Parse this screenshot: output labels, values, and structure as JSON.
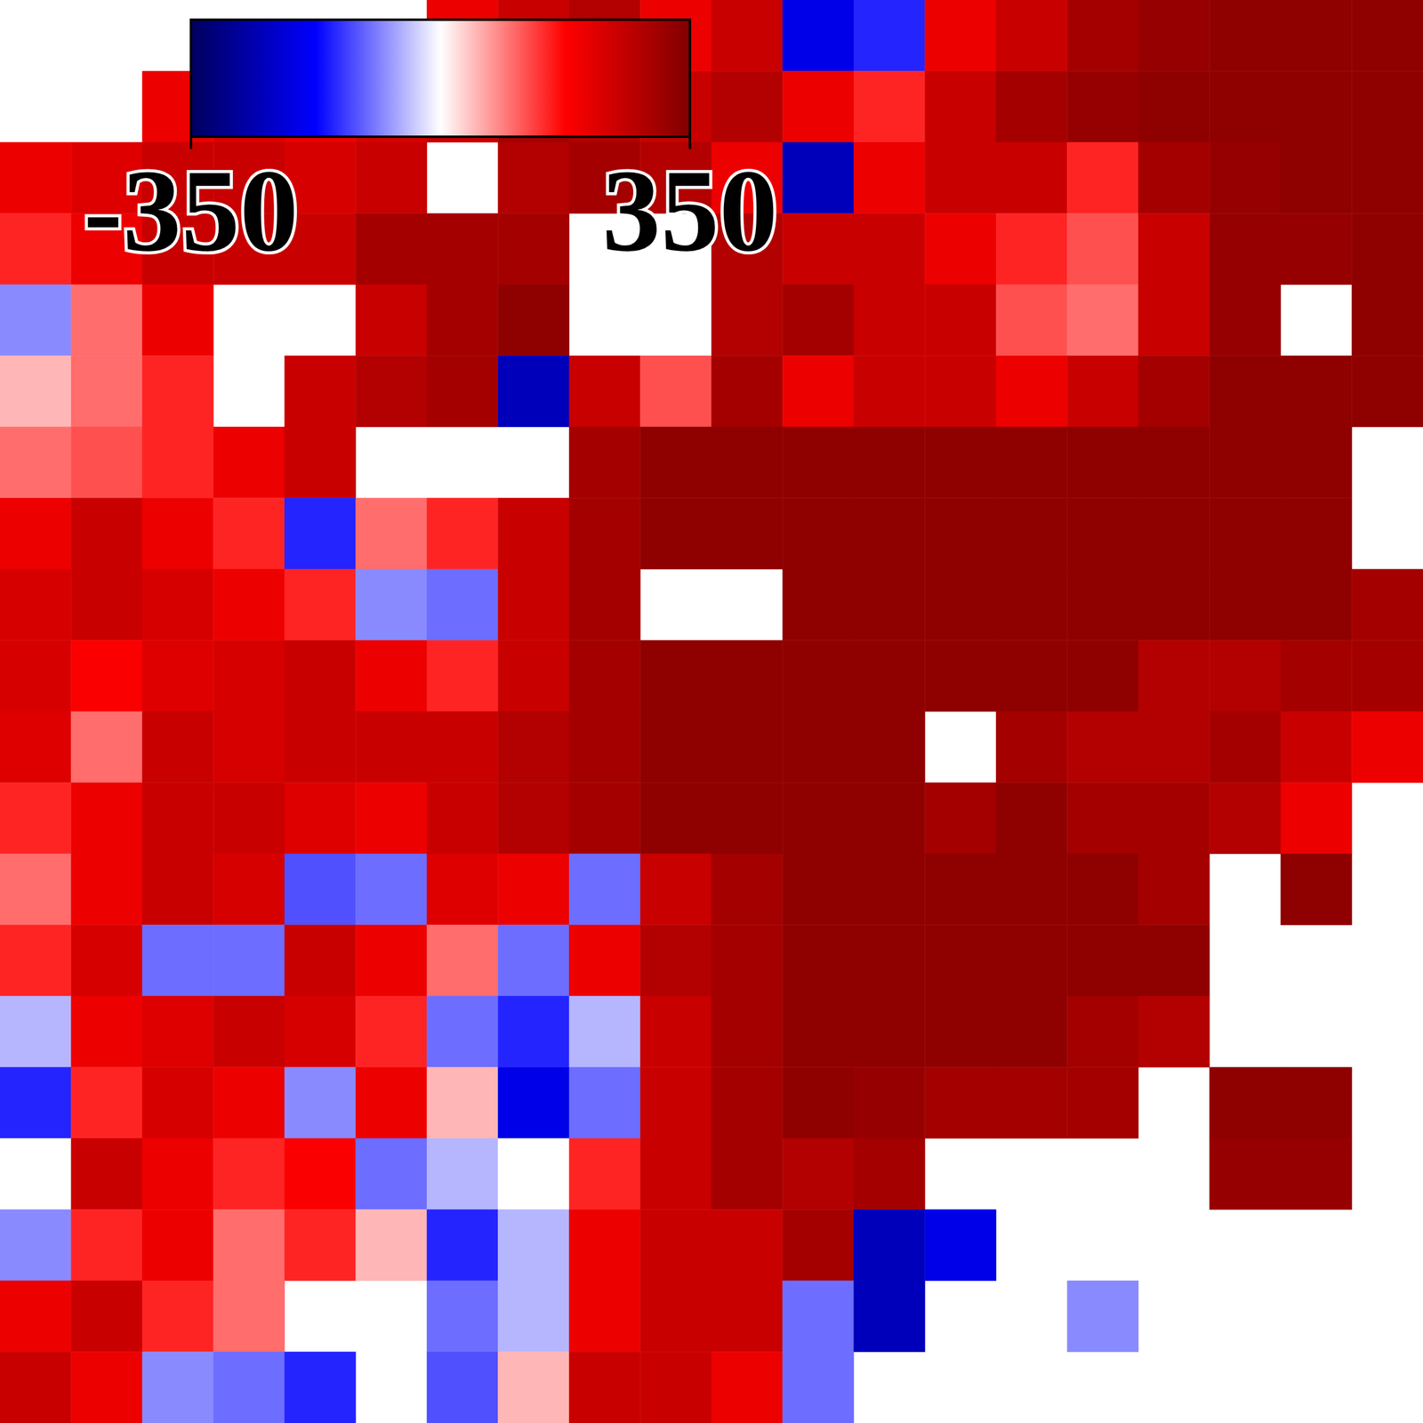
{
  "chart_data": {
    "type": "heatmap",
    "tick_labels": false,
    "colorbar": {
      "range": [
        -350,
        350
      ],
      "ticks": [
        -350,
        350
      ]
    },
    "cells": [
      [
        null,
        null,
        null,
        null,
        null,
        null,
        200,
        250,
        280,
        200,
        250,
        -200,
        -150,
        200,
        250,
        300,
        320,
        330,
        330,
        330
      ],
      [
        null,
        null,
        200,
        220,
        200,
        230,
        250,
        300,
        280,
        250,
        280,
        200,
        150,
        250,
        300,
        320,
        330,
        330,
        330,
        330
      ],
      [
        200,
        220,
        250,
        250,
        230,
        250,
        null,
        280,
        300,
        280,
        200,
        -250,
        200,
        250,
        250,
        150,
        300,
        320,
        330,
        330
      ],
      [
        150,
        200,
        250,
        250,
        250,
        300,
        300,
        300,
        null,
        null,
        280,
        250,
        250,
        200,
        150,
        120,
        250,
        320,
        320,
        330
      ],
      [
        -80,
        100,
        200,
        null,
        null,
        250,
        300,
        330,
        null,
        null,
        280,
        300,
        250,
        250,
        120,
        100,
        250,
        320,
        null,
        330
      ],
      [
        50,
        100,
        150,
        null,
        250,
        280,
        300,
        -250,
        250,
        120,
        300,
        200,
        250,
        250,
        200,
        250,
        300,
        330,
        330,
        330
      ],
      [
        100,
        120,
        150,
        200,
        250,
        null,
        null,
        null,
        300,
        330,
        330,
        330,
        330,
        330,
        330,
        330,
        330,
        330,
        330,
        null
      ],
      [
        200,
        250,
        200,
        150,
        -150,
        100,
        150,
        250,
        300,
        330,
        330,
        330,
        330,
        330,
        330,
        330,
        330,
        330,
        330,
        null
      ],
      [
        230,
        250,
        230,
        200,
        150,
        -80,
        -100,
        250,
        300,
        null,
        null,
        330,
        330,
        330,
        330,
        330,
        330,
        330,
        330,
        300
      ],
      [
        230,
        180,
        220,
        230,
        250,
        200,
        150,
        250,
        300,
        330,
        330,
        330,
        330,
        330,
        330,
        330,
        280,
        280,
        300,
        300
      ],
      [
        220,
        100,
        250,
        230,
        250,
        250,
        250,
        280,
        300,
        330,
        330,
        330,
        330,
        null,
        300,
        280,
        280,
        300,
        250,
        200
      ],
      [
        150,
        200,
        250,
        250,
        220,
        200,
        250,
        280,
        300,
        330,
        330,
        330,
        330,
        300,
        330,
        300,
        300,
        280,
        200,
        null
      ],
      [
        100,
        200,
        250,
        230,
        -120,
        -100,
        220,
        200,
        -100,
        250,
        300,
        330,
        330,
        330,
        330,
        330,
        300,
        null,
        330,
        null
      ],
      [
        150,
        230,
        -100,
        -100,
        250,
        200,
        100,
        -100,
        200,
        280,
        300,
        330,
        330,
        330,
        330,
        330,
        330,
        null,
        null,
        null
      ],
      [
        -50,
        200,
        220,
        250,
        230,
        150,
        -100,
        -150,
        -50,
        250,
        300,
        330,
        330,
        330,
        330,
        300,
        280,
        null,
        null,
        null
      ],
      [
        -150,
        150,
        230,
        200,
        -80,
        200,
        50,
        -200,
        -100,
        250,
        300,
        330,
        320,
        300,
        300,
        300,
        null,
        330,
        330,
        null
      ],
      [
        0,
        250,
        200,
        150,
        180,
        -100,
        -50,
        0,
        150,
        250,
        300,
        280,
        300,
        null,
        null,
        null,
        null,
        320,
        320,
        null
      ],
      [
        -80,
        150,
        200,
        100,
        150,
        50,
        -150,
        -50,
        200,
        250,
        250,
        300,
        -250,
        -200,
        null,
        null,
        null,
        null,
        null,
        null
      ],
      [
        200,
        250,
        150,
        100,
        null,
        null,
        -100,
        -50,
        200,
        250,
        250,
        -100,
        -250,
        null,
        null,
        -80,
        null,
        null,
        null,
        null
      ],
      [
        250,
        200,
        -80,
        -100,
        -150,
        null,
        -120,
        50,
        250,
        250,
        200,
        -100,
        null,
        null,
        null,
        null,
        null,
        null,
        null,
        null
      ]
    ]
  }
}
